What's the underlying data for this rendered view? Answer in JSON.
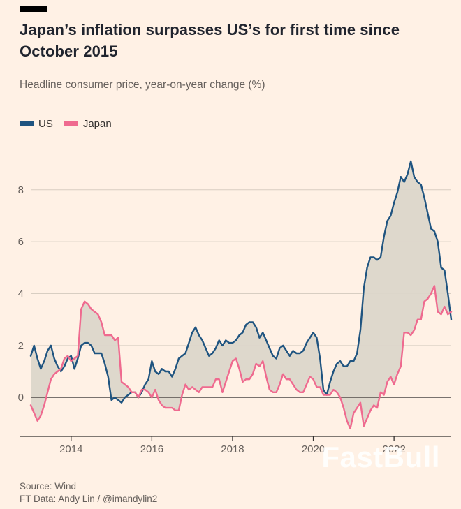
{
  "header": {
    "title": "Japan’s inflation surpasses US’s for first time since October 2015",
    "subtitle": "Headline consumer price, year-on-year change (%)"
  },
  "legend": {
    "us": "US",
    "japan": "Japan"
  },
  "footer": {
    "source": "Source: Wind",
    "credit": "FT Data: Andy Lin / @imandylin2"
  },
  "watermark": {
    "text": "FastBull"
  },
  "chart_data": {
    "type": "line",
    "title": "Japan’s inflation surpasses US’s for first time since October 2015",
    "xlabel": "",
    "ylabel": "Headline consumer price, year-on-year change (%)",
    "x_start": 2013.0,
    "x_step_months": 1,
    "xticks": [
      2014,
      2016,
      2018,
      2020,
      2022
    ],
    "yticks": [
      0,
      2,
      4,
      6,
      8
    ],
    "ylim": [
      -1.5,
      9.5
    ],
    "grid": true,
    "legend_position": "top-left",
    "fill_between_series": true,
    "series": [
      {
        "name": "US",
        "color": "#1f5480",
        "values": [
          1.6,
          2.0,
          1.5,
          1.1,
          1.4,
          1.8,
          2.0,
          1.5,
          1.2,
          1.0,
          1.2,
          1.5,
          1.6,
          1.1,
          1.5,
          2.0,
          2.1,
          2.1,
          2.0,
          1.7,
          1.7,
          1.7,
          1.3,
          0.8,
          -0.1,
          0.0,
          -0.1,
          -0.2,
          0.0,
          0.1,
          0.2,
          0.2,
          0.0,
          0.2,
          0.5,
          0.7,
          1.4,
          1.0,
          0.9,
          1.1,
          1.0,
          1.0,
          0.8,
          1.1,
          1.5,
          1.6,
          1.7,
          2.1,
          2.5,
          2.7,
          2.4,
          2.2,
          1.9,
          1.6,
          1.7,
          1.9,
          2.2,
          2.0,
          2.2,
          2.1,
          2.1,
          2.2,
          2.4,
          2.5,
          2.8,
          2.9,
          2.9,
          2.7,
          2.3,
          2.5,
          2.2,
          1.9,
          1.6,
          1.5,
          1.9,
          2.0,
          1.8,
          1.6,
          1.8,
          1.7,
          1.7,
          1.8,
          2.1,
          2.3,
          2.5,
          2.3,
          1.5,
          0.3,
          0.1,
          0.6,
          1.0,
          1.3,
          1.4,
          1.2,
          1.2,
          1.4,
          1.4,
          1.7,
          2.6,
          4.2,
          5.0,
          5.4,
          5.4,
          5.3,
          5.4,
          6.2,
          6.8,
          7.0,
          7.5,
          7.9,
          8.5,
          8.3,
          8.6,
          9.1,
          8.5,
          8.3,
          8.2,
          7.7,
          7.1,
          6.5,
          6.4,
          6.0,
          5.0,
          4.9,
          4.0,
          3.0
        ]
      },
      {
        "name": "Japan",
        "color": "#ef6a8f",
        "values": [
          -0.3,
          -0.6,
          -0.9,
          -0.7,
          -0.3,
          0.2,
          0.7,
          0.9,
          1.0,
          1.1,
          1.5,
          1.6,
          1.4,
          1.5,
          1.6,
          3.4,
          3.7,
          3.6,
          3.4,
          3.3,
          3.2,
          2.9,
          2.4,
          2.4,
          2.4,
          2.2,
          2.3,
          0.6,
          0.5,
          0.4,
          0.2,
          0.2,
          0.0,
          0.3,
          0.3,
          0.2,
          0.0,
          0.3,
          -0.1,
          -0.3,
          -0.4,
          -0.4,
          -0.4,
          -0.5,
          -0.5,
          0.1,
          0.5,
          0.3,
          0.4,
          0.3,
          0.2,
          0.4,
          0.4,
          0.4,
          0.4,
          0.7,
          0.7,
          0.2,
          0.6,
          1.0,
          1.4,
          1.5,
          1.1,
          0.6,
          0.7,
          0.7,
          0.9,
          1.3,
          1.2,
          1.4,
          0.8,
          0.3,
          0.2,
          0.2,
          0.5,
          0.9,
          0.7,
          0.7,
          0.5,
          0.3,
          0.2,
          0.2,
          0.5,
          0.8,
          0.7,
          0.4,
          0.4,
          0.1,
          0.1,
          0.1,
          0.3,
          0.2,
          0.0,
          -0.4,
          -0.9,
          -1.2,
          -0.6,
          -0.4,
          -0.2,
          -1.1,
          -0.8,
          -0.5,
          -0.3,
          -0.4,
          0.2,
          0.1,
          0.6,
          0.8,
          0.5,
          0.9,
          1.2,
          2.5,
          2.5,
          2.4,
          2.6,
          3.0,
          3.0,
          3.7,
          3.8,
          4.0,
          4.3,
          3.3,
          3.2,
          3.5,
          3.2,
          3.3
        ]
      }
    ],
    "colors": {
      "background": "#fff1e5",
      "fill": "#dcd6ca",
      "grid": "#d8cec2",
      "zeroline": "#66605c",
      "axis": "#33302e",
      "axis_text": "#66605c"
    }
  }
}
